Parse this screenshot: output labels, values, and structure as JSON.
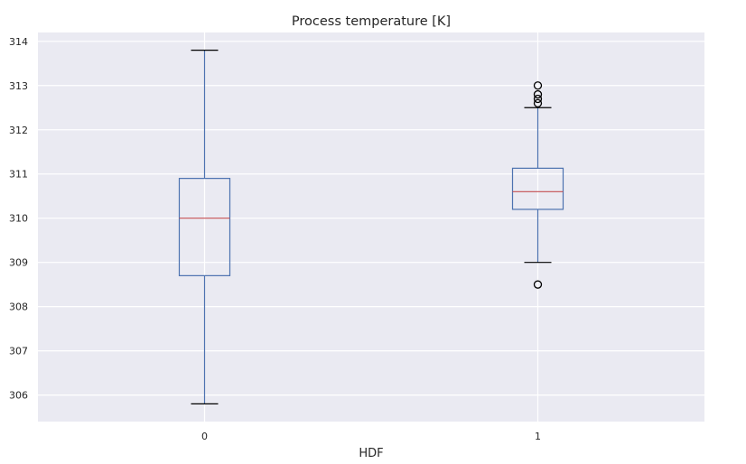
{
  "chart_data": {
    "type": "boxplot",
    "title": "Process temperature [K]",
    "xlabel": "HDF",
    "ylabel": "",
    "ylim": [
      305.4,
      314.2
    ],
    "yticks": [
      306,
      307,
      308,
      309,
      310,
      311,
      312,
      313,
      314
    ],
    "grid": true,
    "categories": [
      "0",
      "1"
    ],
    "boxes": [
      {
        "category": "0",
        "whisker_low": 305.8,
        "q1": 308.7,
        "median": 310.0,
        "q3": 310.9,
        "whisker_high": 313.8,
        "outliers": []
      },
      {
        "category": "1",
        "whisker_low": 309.0,
        "q1": 310.2,
        "median": 310.6,
        "q3": 311.13,
        "whisker_high": 312.5,
        "outliers": [
          308.5,
          312.6,
          312.7,
          312.8,
          313.0
        ]
      }
    ],
    "colors": {
      "background": "#eaeaf2",
      "grid": "#ffffff",
      "box": "#4c72b0",
      "median": "#c44e52",
      "cap": "#000000",
      "outlier": "#000000"
    }
  }
}
